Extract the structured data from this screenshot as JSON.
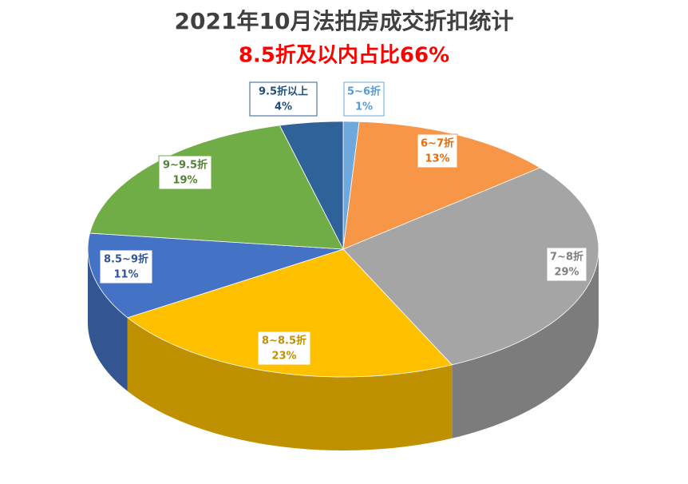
{
  "chart_data": {
    "type": "pie",
    "title": "2021年10月法拍房成交折扣统计",
    "subtitle": "8.5折及以内占比66%",
    "categories": [
      "5~6折",
      "6~7折",
      "7~8折",
      "8~8.5折",
      "8.5~9折",
      "9~9.5折",
      "9.5折以上"
    ],
    "values": [
      1,
      13,
      29,
      23,
      11,
      19,
      4
    ],
    "value_labels": [
      "1%",
      "13%",
      "29%",
      "23%",
      "11%",
      "19%",
      "4%"
    ],
    "colors": [
      "#6fa8dc",
      "#f79646",
      "#a5a5a5",
      "#ffc000",
      "#4472c4",
      "#70ad47",
      "#2e6299"
    ],
    "label_colors": [
      "#5b9bd5",
      "#e46c0a",
      "#7f7f7f",
      "#bf9000",
      "#2f5597",
      "#548235",
      "#1f4e79"
    ]
  }
}
